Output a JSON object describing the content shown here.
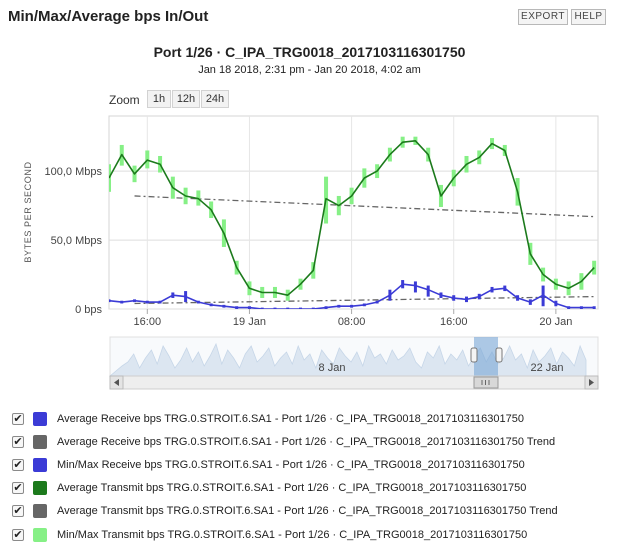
{
  "panel": {
    "title": "Min/Max/Average bps In/Out",
    "export_label": "EXPORT",
    "help_label": "HELP"
  },
  "zoom": {
    "label": "Zoom",
    "options": [
      "1h",
      "12h",
      "24h"
    ]
  },
  "legend": [
    {
      "label": "Average Receive bps TRG.0.STROIT.6.SA1 - Port 1/26 · C_IPA_TRG0018_2017103116301750",
      "color": "#3b3bd6",
      "checked": true
    },
    {
      "label": "Average Receive bps TRG.0.STROIT.6.SA1 - Port 1/26 · C_IPA_TRG0018_2017103116301750 Trend",
      "color": "#666666",
      "checked": true
    },
    {
      "label": "Min/Max Receive bps TRG.0.STROIT.6.SA1 - Port 1/26 · C_IPA_TRG0018_2017103116301750",
      "color": "#3b3bd6",
      "checked": true
    },
    {
      "label": "Average Transmit bps TRG.0.STROIT.6.SA1 - Port 1/26 · C_IPA_TRG0018_2017103116301750",
      "color": "#1c7a1c",
      "checked": true
    },
    {
      "label": "Average Transmit bps TRG.0.STROIT.6.SA1 - Port 1/26 · C_IPA_TRG0018_2017103116301750 Trend",
      "color": "#666666",
      "checked": true
    },
    {
      "label": "Min/Max Transmit bps TRG.0.STROIT.6.SA1 - Port 1/26 · C_IPA_TRG0018_2017103116301750",
      "color": "#86f086",
      "checked": true
    }
  ],
  "chart_data": {
    "type": "line",
    "title": "Port 1/26 · C_IPA_TRG0018_2017103116301750",
    "subtitle": "Jan 18 2018, 2:31 pm - Jan 20 2018, 4:02 am",
    "ylabel": "BYTES PER SECOND",
    "y_unit": "Mbps",
    "ylim": [
      0,
      140
    ],
    "y_ticks": [
      0,
      50,
      100
    ],
    "y_tick_labels": [
      "0 bps",
      "50,0 Mbps",
      "100,0 Mbps"
    ],
    "x_range_hours": [
      -1.5,
      36.8
    ],
    "x_ticks": [
      {
        "hour": 1.5,
        "label": "16:00"
      },
      {
        "hour": 9.5,
        "label": "19 Jan"
      },
      {
        "hour": 17.5,
        "label": "08:00"
      },
      {
        "hour": 25.5,
        "label": "16:00"
      },
      {
        "hour": 33.5,
        "label": "20 Jan"
      }
    ],
    "x_axis_origin": "Jan 18 2018 14:30",
    "grid": true,
    "series": [
      {
        "name": "Average Transmit bps",
        "color": "#1c7a1c",
        "x": [
          -1.5,
          -0.5,
          0.5,
          1.5,
          2.5,
          3.5,
          4.5,
          5.5,
          6.5,
          7.5,
          8.5,
          9.5,
          10.5,
          11.5,
          12.5,
          13.5,
          14.5,
          15.5,
          16.5,
          17.5,
          18.5,
          19.5,
          20.5,
          21.5,
          22.5,
          23.5,
          24.5,
          25.5,
          26.5,
          27.5,
          28.5,
          29.5,
          30.5,
          31.5,
          32.5,
          33.5,
          34.5,
          35.5,
          36.5
        ],
        "y": [
          95,
          112,
          98,
          108,
          105,
          88,
          82,
          80,
          72,
          55,
          30,
          15,
          12,
          12,
          10,
          18,
          28,
          80,
          75,
          82,
          95,
          100,
          112,
          121,
          122,
          112,
          82,
          95,
          105,
          110,
          120,
          115,
          85,
          40,
          25,
          18,
          15,
          20,
          30
        ]
      },
      {
        "name": "Min/Max Transmit bps",
        "color": "#86f086",
        "x": [
          -1.5,
          -0.5,
          0.5,
          1.5,
          2.5,
          3.5,
          4.5,
          5.5,
          6.5,
          7.5,
          8.5,
          9.5,
          10.5,
          11.5,
          12.5,
          13.5,
          14.5,
          15.5,
          16.5,
          17.5,
          18.5,
          19.5,
          20.5,
          21.5,
          22.5,
          23.5,
          24.5,
          25.5,
          26.5,
          27.5,
          28.5,
          29.5,
          30.5,
          31.5,
          32.5,
          33.5,
          34.5,
          35.5,
          36.5
        ],
        "low": [
          85,
          104,
          92,
          102,
          99,
          80,
          76,
          75,
          66,
          45,
          25,
          10,
          8,
          8,
          6,
          14,
          22,
          62,
          68,
          76,
          88,
          95,
          107,
          117,
          119,
          107,
          74,
          89,
          99,
          105,
          116,
          111,
          75,
          32,
          20,
          14,
          10,
          14,
          25
        ],
        "high": [
          105,
          119,
          104,
          115,
          111,
          96,
          88,
          86,
          78,
          65,
          35,
          20,
          16,
          16,
          14,
          22,
          34,
          96,
          82,
          88,
          102,
          105,
          117,
          125,
          125,
          117,
          90,
          101,
          111,
          115,
          124,
          119,
          95,
          48,
          30,
          22,
          20,
          26,
          35
        ]
      },
      {
        "name": "Average Receive bps",
        "color": "#3b3bd6",
        "x": [
          -1.5,
          -0.5,
          0.5,
          1.5,
          2.5,
          3.5,
          4.5,
          5.5,
          6.5,
          7.5,
          8.5,
          9.5,
          10.5,
          11.5,
          12.5,
          13.5,
          14.5,
          15.5,
          16.5,
          17.5,
          18.5,
          19.5,
          20.5,
          21.5,
          22.5,
          23.5,
          24.5,
          25.5,
          26.5,
          27.5,
          28.5,
          29.5,
          30.5,
          31.5,
          32.5,
          33.5,
          34.5,
          35.5,
          36.5
        ],
        "y": [
          6,
          5,
          6,
          5,
          5,
          10,
          9,
          5,
          3,
          2,
          1,
          1,
          0,
          0,
          0,
          0,
          0,
          1,
          2,
          2,
          3,
          5,
          10,
          18,
          17,
          14,
          10,
          8,
          7,
          9,
          14,
          15,
          8,
          5,
          10,
          4,
          1,
          1,
          1
        ]
      },
      {
        "name": "Min/Max Receive bps",
        "color": "#3b3bd6",
        "x": [
          -1.5,
          -0.5,
          0.5,
          1.5,
          2.5,
          3.5,
          4.5,
          5.5,
          6.5,
          7.5,
          8.5,
          9.5,
          10.5,
          11.5,
          12.5,
          13.5,
          14.5,
          15.5,
          16.5,
          17.5,
          18.5,
          19.5,
          20.5,
          21.5,
          22.5,
          23.5,
          24.5,
          25.5,
          26.5,
          27.5,
          28.5,
          29.5,
          30.5,
          31.5,
          32.5,
          33.5,
          34.5,
          35.5,
          36.5
        ],
        "low": [
          5,
          4,
          5,
          4,
          4,
          8,
          5,
          4,
          2,
          1,
          0,
          0,
          0,
          0,
          0,
          0,
          0,
          0,
          1,
          1,
          2,
          4,
          6,
          15,
          12,
          9,
          8,
          6,
          5,
          7,
          12,
          13,
          6,
          3,
          2,
          2,
          0,
          0,
          0
        ],
        "high": [
          7,
          6,
          7,
          6,
          6,
          12,
          13,
          6,
          4,
          3,
          2,
          2,
          1,
          1,
          1,
          1,
          1,
          2,
          3,
          3,
          4,
          6,
          14,
          21,
          20,
          17,
          12,
          10,
          9,
          11,
          16,
          17,
          10,
          7,
          17,
          6,
          2,
          2,
          2
        ]
      },
      {
        "name": "Average Transmit bps Trend",
        "color": "#666666",
        "dashed": true,
        "x": [
          0.5,
          36.5
        ],
        "y": [
          82,
          67
        ]
      },
      {
        "name": "Average Receive bps Trend",
        "color": "#666666",
        "dashed": true,
        "x": [
          0.5,
          36.5
        ],
        "y": [
          4,
          9
        ]
      }
    ],
    "navigator": {
      "labels": [
        "8 Jan",
        "22 Jan"
      ],
      "values": [
        10,
        14,
        22,
        8,
        18,
        26,
        12,
        30,
        20,
        8,
        16,
        28,
        14,
        24,
        10,
        20,
        32,
        12,
        26,
        18,
        8,
        22,
        30,
        14,
        20,
        28,
        10,
        18,
        24,
        12,
        30,
        16,
        22,
        8,
        26,
        18,
        12,
        28,
        20,
        14,
        24,
        10,
        30,
        18,
        22,
        12,
        26,
        16,
        20,
        28,
        14,
        8,
        24,
        18,
        30,
        12,
        22,
        16,
        26,
        10,
        20,
        28,
        14,
        24,
        12,
        18,
        30,
        16,
        22,
        8,
        26,
        14,
        20,
        28,
        12,
        24,
        18,
        10,
        30,
        16
      ]
    }
  }
}
